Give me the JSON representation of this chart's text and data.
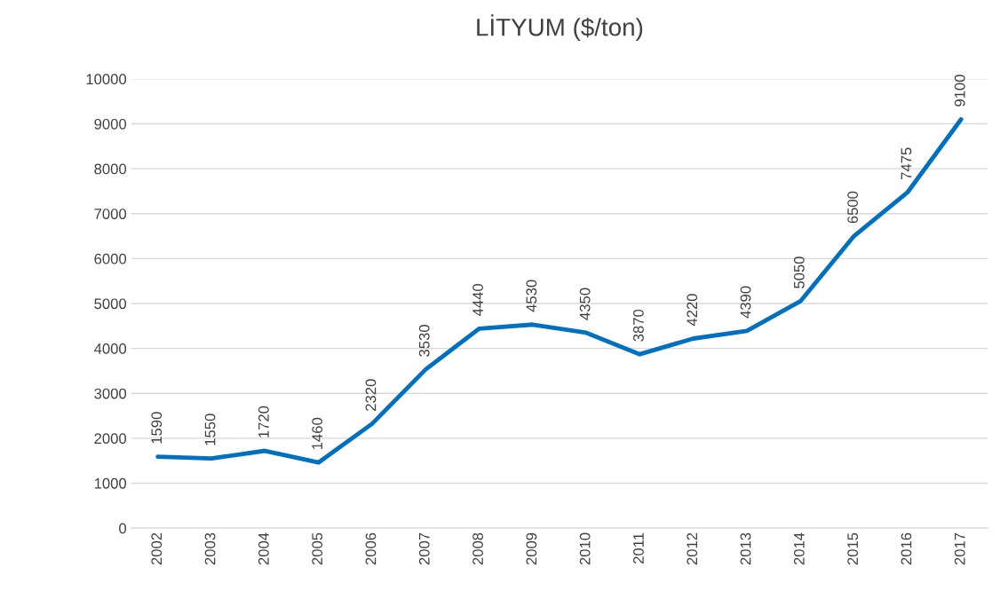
{
  "chart_data": {
    "type": "line",
    "title": "LİTYUM ($/ton)",
    "categories": [
      "2002",
      "2003",
      "2004",
      "2005",
      "2006",
      "2007",
      "2008",
      "2009",
      "2010",
      "2011",
      "2012",
      "2013",
      "2014",
      "2015",
      "2016",
      "2017"
    ],
    "series": [
      {
        "color": "#0070c0",
        "values": [
          1590,
          1550,
          1720,
          1460,
          2320,
          3530,
          4440,
          4530,
          4350,
          3870,
          4220,
          4390,
          5050,
          6500,
          7475,
          9100
        ]
      }
    ],
    "ylim": [
      0,
      10000
    ],
    "yticks": [
      0,
      1000,
      2000,
      3000,
      4000,
      5000,
      6000,
      7000,
      8000,
      9000,
      10000
    ],
    "grid": "y",
    "data_labels": true,
    "marker": "none",
    "line_style": "solid"
  }
}
